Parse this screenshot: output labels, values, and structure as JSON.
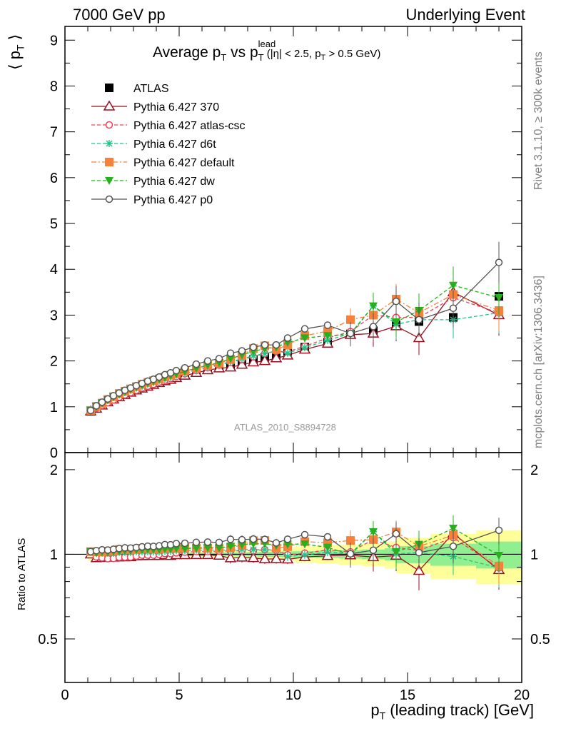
{
  "header": {
    "left": "7000 GeV pp",
    "right": "Underlying Event"
  },
  "side_labels": {
    "rivet": "Rivet 3.1.10, ≥ 300k events",
    "mcplots": "mcplots.cern.ch [arXiv:1306.3436]"
  },
  "watermark": "ATLAS_2010_S8894728",
  "title": {
    "main": "Average p",
    "sub_t": "T",
    "vs": " vs p",
    "sup_lead": "lead",
    "sub_t2": "T",
    "cuts": " (|η| < 2.5, p",
    "cuts_sub": "T",
    "cuts_end": " > 0.5 GeV)"
  },
  "ylabel_top": {
    "l": "⟨ p",
    "sub": "T",
    "r": " ⟩"
  },
  "ylabel_bottom": "Ratio to ATLAS",
  "xlabel": {
    "p": "p",
    "sub": "T",
    "rest": " (leading track) [GeV]"
  },
  "colors": {
    "atlas": "#000000",
    "p370": "#9a0f1f",
    "atlas_csc": "#f3405a",
    "d6t": "#1ec386",
    "default": "#f7813a",
    "dw": "#25b01d",
    "p0": "#555555",
    "band_inner": "#90f090",
    "band_outer": "#ffff99"
  },
  "chart_data": [
    {
      "type": "scatter",
      "panel": "main",
      "xlim": [
        0,
        20
      ],
      "ylim": [
        0,
        9.3
      ],
      "yticks": [
        0,
        1,
        2,
        3,
        4,
        5,
        6,
        7,
        8,
        9
      ],
      "x": [
        1.125,
        1.375,
        1.625,
        1.875,
        2.125,
        2.375,
        2.625,
        2.875,
        3.125,
        3.375,
        3.625,
        3.875,
        4.125,
        4.375,
        4.625,
        4.875,
        5.25,
        5.75,
        6.25,
        6.75,
        7.25,
        7.75,
        8.25,
        8.75,
        9.25,
        9.75,
        10.5,
        11.5,
        12.5,
        13.5,
        14.5,
        15.5,
        17.0,
        19.0
      ],
      "legend_placement": "top-left",
      "series": [
        {
          "name": "ATLAS",
          "key": "atlas",
          "marker": "square-filled",
          "line": "none",
          "values": [
            0.9,
            0.99,
            1.06,
            1.13,
            1.19,
            1.24,
            1.29,
            1.34,
            1.38,
            1.42,
            1.46,
            1.5,
            1.54,
            1.57,
            1.61,
            1.64,
            1.69,
            1.75,
            1.81,
            1.86,
            1.92,
            1.97,
            2.03,
            2.08,
            2.14,
            2.21,
            2.3,
            2.41,
            2.59,
            2.66,
            2.79,
            2.86,
            2.95,
            3.41
          ]
        },
        {
          "name": "Pythia 6.427 370",
          "key": "p370",
          "marker": "triangle-open",
          "line": "solid",
          "values": [
            0.9,
            0.96,
            1.03,
            1.1,
            1.16,
            1.21,
            1.26,
            1.31,
            1.36,
            1.4,
            1.44,
            1.48,
            1.52,
            1.56,
            1.59,
            1.63,
            1.68,
            1.74,
            1.8,
            1.84,
            1.86,
            1.92,
            1.97,
            2.0,
            2.06,
            2.12,
            2.25,
            2.38,
            2.57,
            2.6,
            2.76,
            2.5,
            3.5,
            3.0
          ]
        },
        {
          "name": "Pythia 6.427 atlas-csc",
          "key": "atlas_csc",
          "marker": "circle-open",
          "line": "dashed",
          "values": [
            0.92,
            0.97,
            1.03,
            1.09,
            1.15,
            1.21,
            1.26,
            1.31,
            1.36,
            1.41,
            1.45,
            1.49,
            1.54,
            1.58,
            1.62,
            1.66,
            1.72,
            1.79,
            1.85,
            1.91,
            1.97,
            2.03,
            2.09,
            2.16,
            2.21,
            2.2,
            2.32,
            2.5,
            2.64,
            3.0,
            2.95,
            2.95,
            3.38,
            3.05
          ]
        },
        {
          "name": "Pythia 6.427 d6t",
          "key": "d6t",
          "marker": "star",
          "line": "dashed",
          "values": [
            0.92,
            1.0,
            1.07,
            1.14,
            1.2,
            1.26,
            1.31,
            1.36,
            1.41,
            1.45,
            1.49,
            1.53,
            1.57,
            1.61,
            1.65,
            1.69,
            1.74,
            1.81,
            1.87,
            1.93,
            1.98,
            2.05,
            2.11,
            2.16,
            2.22,
            2.17,
            2.29,
            2.45,
            2.6,
            3.2,
            2.8,
            2.9,
            2.9,
            3.05
          ]
        },
        {
          "name": "Pythia 6.427 default",
          "key": "default",
          "marker": "square-filled",
          "line": "dashdot",
          "values": [
            0.92,
            1.01,
            1.08,
            1.16,
            1.22,
            1.29,
            1.34,
            1.39,
            1.44,
            1.49,
            1.53,
            1.57,
            1.61,
            1.65,
            1.69,
            1.72,
            1.78,
            1.84,
            1.9,
            1.95,
            2.03,
            2.12,
            2.27,
            2.33,
            2.25,
            2.35,
            2.55,
            2.65,
            2.9,
            3.0,
            3.35,
            3.05,
            3.45,
            3.1
          ]
        },
        {
          "name": "Pythia 6.427 dw",
          "key": "dw",
          "marker": "triangle-down-filled",
          "line": "dashed",
          "values": [
            0.92,
            1.0,
            1.08,
            1.15,
            1.22,
            1.27,
            1.33,
            1.38,
            1.43,
            1.47,
            1.52,
            1.56,
            1.6,
            1.64,
            1.68,
            1.72,
            1.77,
            1.84,
            1.91,
            1.96,
            2.05,
            2.13,
            2.21,
            2.27,
            2.3,
            2.4,
            2.5,
            2.55,
            2.58,
            3.2,
            2.85,
            3.1,
            3.65,
            3.38
          ]
        },
        {
          "name": "Pythia 6.427 p0",
          "key": "p0",
          "marker": "circle-open",
          "line": "solid",
          "values": [
            0.92,
            1.02,
            1.1,
            1.17,
            1.24,
            1.3,
            1.36,
            1.41,
            1.46,
            1.51,
            1.56,
            1.6,
            1.65,
            1.7,
            1.74,
            1.79,
            1.85,
            1.93,
            2.0,
            2.05,
            2.17,
            2.22,
            2.3,
            2.35,
            2.35,
            2.5,
            2.7,
            2.78,
            2.6,
            2.75,
            3.3,
            2.9,
            3.15,
            4.15
          ]
        }
      ]
    },
    {
      "type": "scatter",
      "panel": "ratio",
      "ylabel": "Ratio to ATLAS",
      "xlim": [
        0,
        20
      ],
      "ylim": [
        0.35,
        2.3
      ],
      "yticks": [
        0.5,
        1,
        2
      ],
      "xticks": [
        0,
        5,
        10,
        15,
        20
      ],
      "description": "Ratio of each Pythia tune to the ATLAS data, with ATLAS uncertainty bands around 1"
    }
  ]
}
